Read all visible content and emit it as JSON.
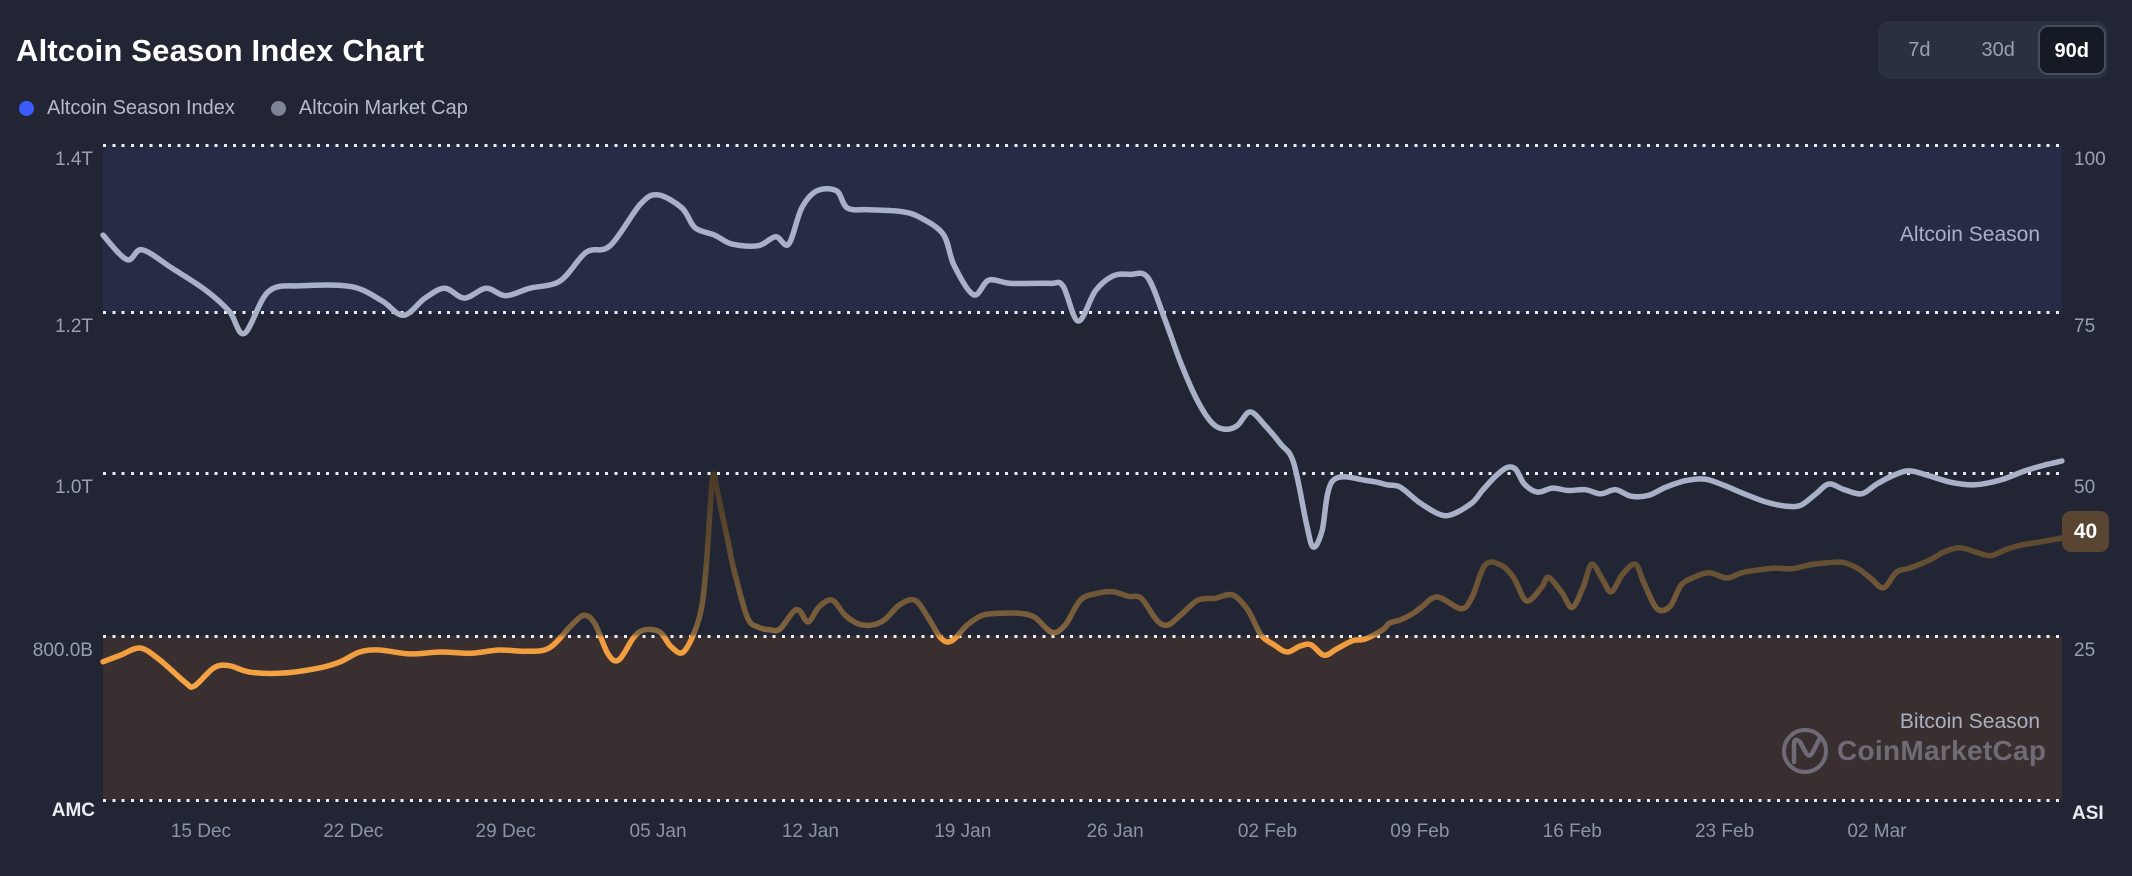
{
  "header": {
    "title": "Altcoin Season Index Chart"
  },
  "legend": {
    "items": [
      {
        "label": "Altcoin Season Index",
        "dot_color": "#3b5bfd"
      },
      {
        "label": "Altcoin Market Cap",
        "dot_color": "#7d8497"
      }
    ]
  },
  "range_buttons": {
    "options": [
      "7d",
      "30d",
      "90d"
    ],
    "active": "90d"
  },
  "watermark": {
    "brand": "CoinMarketCap"
  },
  "chart_data": {
    "type": "line",
    "title": "Altcoin Season Index Chart",
    "grid": "horizontal-dotted",
    "left_axis": {
      "corner_label": "AMC",
      "ticks": [
        "1.4T",
        "1.2T",
        "1.0T",
        "800.0B"
      ],
      "tick_values_trillions": [
        1.4,
        1.2,
        1.0,
        0.8
      ]
    },
    "right_axis": {
      "corner_label": "ASI",
      "ticks": [
        "100",
        "75",
        "50",
        "25"
      ],
      "tick_values": [
        100,
        75,
        50,
        25
      ],
      "range": [
        0,
        100
      ],
      "current_value": 40,
      "current_label": "40",
      "badge_color": "#5a4532"
    },
    "x_axis": {
      "ticks": [
        "15 Dec",
        "22 Dec",
        "29 Dec",
        "05 Jan",
        "12 Jan",
        "19 Jan",
        "26 Jan",
        "02 Feb",
        "09 Feb",
        "16 Feb",
        "23 Feb",
        "02 Mar"
      ],
      "tick_days": [
        5,
        12,
        19,
        26,
        33,
        40,
        47,
        54,
        61,
        68,
        75,
        82
      ],
      "span_days": 90
    },
    "bands": [
      {
        "label": "Altcoin Season",
        "axis": "right",
        "range": [
          75,
          100
        ],
        "color": "#272c46"
      },
      {
        "label": "Bitcoin Season",
        "axis": "right",
        "range": [
          0,
          25
        ],
        "color": "#3a2f30"
      }
    ],
    "series": [
      {
        "name": "Altcoin Season Index",
        "axis": "right",
        "color_below_25": "#f19a3e",
        "color_above_25": "#5d4730",
        "points": [
          [
            0.5,
            21.1
          ],
          [
            1.3,
            22.1
          ],
          [
            2.2,
            23.2
          ],
          [
            3.1,
            21.4
          ],
          [
            4.3,
            17.9
          ],
          [
            4.7,
            17.4
          ],
          [
            5.6,
            20.2
          ],
          [
            6.3,
            20.5
          ],
          [
            7.3,
            19.5
          ],
          [
            8.9,
            19.4
          ],
          [
            10.5,
            20.2
          ],
          [
            11.4,
            21.1
          ],
          [
            12.3,
            22.6
          ],
          [
            13.2,
            22.9
          ],
          [
            14.6,
            22.3
          ],
          [
            16.0,
            22.6
          ],
          [
            17.4,
            22.4
          ],
          [
            18.7,
            22.9
          ],
          [
            19.9,
            22.7
          ],
          [
            21.0,
            23.2
          ],
          [
            22.0,
            26.6
          ],
          [
            22.6,
            28.2
          ],
          [
            23.1,
            26.9
          ],
          [
            23.7,
            22.3
          ],
          [
            24.2,
            21.4
          ],
          [
            24.9,
            24.9
          ],
          [
            25.4,
            26.0
          ],
          [
            26.1,
            25.6
          ],
          [
            26.6,
            23.4
          ],
          [
            27.2,
            22.7
          ],
          [
            27.9,
            27.9
          ],
          [
            28.2,
            35.1
          ],
          [
            28.5,
            49.0
          ],
          [
            28.7,
            47.5
          ],
          [
            28.9,
            44.3
          ],
          [
            29.2,
            39.7
          ],
          [
            29.5,
            35.0
          ],
          [
            30.1,
            27.9
          ],
          [
            30.6,
            26.4
          ],
          [
            31.1,
            26.0
          ],
          [
            31.6,
            26.1
          ],
          [
            32.2,
            28.7
          ],
          [
            32.5,
            28.9
          ],
          [
            32.9,
            27.2
          ],
          [
            33.4,
            29.5
          ],
          [
            34.0,
            30.5
          ],
          [
            34.6,
            28.2
          ],
          [
            35.2,
            26.9
          ],
          [
            35.8,
            26.7
          ],
          [
            36.4,
            27.5
          ],
          [
            37.1,
            29.8
          ],
          [
            37.8,
            30.5
          ],
          [
            38.4,
            27.9
          ],
          [
            39.0,
            24.7
          ],
          [
            39.5,
            24.3
          ],
          [
            40.2,
            26.7
          ],
          [
            40.9,
            28.2
          ],
          [
            41.7,
            28.5
          ],
          [
            42.6,
            28.5
          ],
          [
            43.3,
            27.9
          ],
          [
            44.1,
            25.6
          ],
          [
            44.7,
            26.7
          ],
          [
            45.4,
            30.5
          ],
          [
            46.1,
            31.5
          ],
          [
            46.9,
            31.8
          ],
          [
            47.6,
            31.1
          ],
          [
            48.2,
            30.8
          ],
          [
            48.9,
            27.5
          ],
          [
            49.4,
            26.7
          ],
          [
            50.0,
            28.2
          ],
          [
            50.8,
            30.5
          ],
          [
            51.6,
            30.8
          ],
          [
            52.4,
            31.3
          ],
          [
            53.1,
            29.0
          ],
          [
            53.7,
            25.2
          ],
          [
            54.3,
            23.7
          ],
          [
            54.9,
            22.6
          ],
          [
            55.5,
            23.5
          ],
          [
            56.0,
            23.7
          ],
          [
            56.6,
            22.1
          ],
          [
            57.2,
            23.1
          ],
          [
            57.9,
            24.3
          ],
          [
            58.5,
            24.6
          ],
          [
            59.3,
            26.0
          ],
          [
            59.6,
            27.0
          ],
          [
            60.1,
            27.5
          ],
          [
            60.7,
            28.5
          ],
          [
            61.1,
            29.5
          ],
          [
            61.8,
            31.0
          ],
          [
            62.9,
            29.2
          ],
          [
            63.4,
            31.0
          ],
          [
            64.0,
            35.9
          ],
          [
            64.7,
            35.9
          ],
          [
            65.3,
            34.0
          ],
          [
            65.9,
            30.4
          ],
          [
            66.6,
            32.5
          ],
          [
            66.9,
            34.0
          ],
          [
            67.5,
            31.8
          ],
          [
            68.0,
            29.4
          ],
          [
            68.5,
            32.5
          ],
          [
            68.9,
            36.0
          ],
          [
            69.4,
            33.6
          ],
          [
            69.8,
            31.8
          ],
          [
            70.3,
            34.4
          ],
          [
            70.9,
            36.0
          ],
          [
            71.3,
            33.1
          ],
          [
            71.9,
            29.2
          ],
          [
            72.5,
            29.6
          ],
          [
            73.0,
            32.8
          ],
          [
            73.6,
            34.0
          ],
          [
            74.3,
            34.7
          ],
          [
            75.1,
            33.9
          ],
          [
            75.8,
            34.7
          ],
          [
            76.5,
            35.1
          ],
          [
            77.3,
            35.4
          ],
          [
            78.1,
            35.3
          ],
          [
            78.9,
            35.9
          ],
          [
            79.7,
            36.2
          ],
          [
            80.4,
            36.3
          ],
          [
            81.1,
            35.4
          ],
          [
            81.7,
            33.9
          ],
          [
            82.3,
            32.4
          ],
          [
            82.9,
            34.8
          ],
          [
            83.5,
            35.4
          ],
          [
            84.4,
            36.6
          ],
          [
            85.1,
            37.9
          ],
          [
            85.8,
            38.5
          ],
          [
            86.5,
            37.9
          ],
          [
            87.2,
            37.3
          ],
          [
            87.9,
            38.2
          ],
          [
            88.6,
            38.9
          ],
          [
            89.5,
            39.4
          ],
          [
            90.5,
            40.0
          ]
        ]
      },
      {
        "name": "Altcoin Market Cap",
        "axis": "left",
        "unit": "trillions USD",
        "color": "#a8b1c7",
        "points": [
          [
            0.5,
            1.29
          ],
          [
            1.6,
            1.26
          ],
          [
            2.3,
            1.272
          ],
          [
            3.7,
            1.249
          ],
          [
            5.2,
            1.223
          ],
          [
            6.3,
            1.197
          ],
          [
            7.0,
            1.17
          ],
          [
            8.1,
            1.221
          ],
          [
            9.6,
            1.228
          ],
          [
            11.9,
            1.227
          ],
          [
            13.3,
            1.21
          ],
          [
            14.3,
            1.192
          ],
          [
            15.3,
            1.213
          ],
          [
            16.2,
            1.225
          ],
          [
            17.1,
            1.213
          ],
          [
            18.1,
            1.225
          ],
          [
            19.0,
            1.216
          ],
          [
            20.1,
            1.225
          ],
          [
            21.5,
            1.234
          ],
          [
            22.7,
            1.269
          ],
          [
            23.8,
            1.277
          ],
          [
            25.2,
            1.328
          ],
          [
            26.0,
            1.339
          ],
          [
            27.1,
            1.323
          ],
          [
            27.7,
            1.299
          ],
          [
            28.6,
            1.29
          ],
          [
            29.4,
            1.279
          ],
          [
            30.6,
            1.277
          ],
          [
            31.4,
            1.288
          ],
          [
            32.0,
            1.279
          ],
          [
            32.6,
            1.323
          ],
          [
            33.3,
            1.344
          ],
          [
            34.2,
            1.344
          ],
          [
            34.7,
            1.323
          ],
          [
            35.7,
            1.321
          ],
          [
            37.1,
            1.319
          ],
          [
            38.0,
            1.312
          ],
          [
            39.1,
            1.291
          ],
          [
            39.6,
            1.253
          ],
          [
            40.5,
            1.217
          ],
          [
            41.2,
            1.235
          ],
          [
            42.2,
            1.231
          ],
          [
            44.0,
            1.231
          ],
          [
            44.6,
            1.228
          ],
          [
            45.3,
            1.185
          ],
          [
            46.1,
            1.222
          ],
          [
            46.9,
            1.24
          ],
          [
            47.7,
            1.242
          ],
          [
            48.5,
            1.238
          ],
          [
            49.3,
            1.186
          ],
          [
            50.0,
            1.135
          ],
          [
            50.7,
            1.092
          ],
          [
            51.4,
            1.062
          ],
          [
            52.0,
            1.053
          ],
          [
            52.6,
            1.057
          ],
          [
            53.2,
            1.074
          ],
          [
            53.9,
            1.057
          ],
          [
            54.6,
            1.035
          ],
          [
            55.2,
            1.012
          ],
          [
            55.8,
            0.936
          ],
          [
            56.1,
            0.909
          ],
          [
            56.5,
            0.928
          ],
          [
            57.0,
            0.99
          ],
          [
            58.6,
            0.99
          ],
          [
            59.5,
            0.985
          ],
          [
            60.1,
            0.982
          ],
          [
            61.0,
            0.963
          ],
          [
            61.9,
            0.949
          ],
          [
            62.5,
            0.949
          ],
          [
            63.4,
            0.963
          ],
          [
            63.9,
            0.979
          ],
          [
            64.5,
            0.996
          ],
          [
            65.0,
            1.006
          ],
          [
            65.4,
            1.004
          ],
          [
            65.8,
            0.986
          ],
          [
            66.4,
            0.976
          ],
          [
            67.1,
            0.981
          ],
          [
            67.8,
            0.978
          ],
          [
            68.6,
            0.979
          ],
          [
            69.3,
            0.974
          ],
          [
            70.0,
            0.979
          ],
          [
            70.7,
            0.971
          ],
          [
            71.5,
            0.972
          ],
          [
            72.3,
            0.982
          ],
          [
            73.2,
            0.99
          ],
          [
            74.1,
            0.992
          ],
          [
            75.0,
            0.984
          ],
          [
            75.9,
            0.974
          ],
          [
            76.9,
            0.964
          ],
          [
            77.8,
            0.959
          ],
          [
            78.5,
            0.96
          ],
          [
            79.2,
            0.974
          ],
          [
            79.8,
            0.986
          ],
          [
            80.5,
            0.979
          ],
          [
            81.3,
            0.974
          ],
          [
            82.0,
            0.986
          ],
          [
            82.8,
            0.997
          ],
          [
            83.5,
            1.002
          ],
          [
            84.4,
            0.996
          ],
          [
            85.4,
            0.988
          ],
          [
            86.5,
            0.985
          ],
          [
            87.7,
            0.991
          ],
          [
            88.8,
            1.002
          ],
          [
            89.7,
            1.009
          ],
          [
            90.5,
            1.014
          ]
        ]
      }
    ]
  }
}
